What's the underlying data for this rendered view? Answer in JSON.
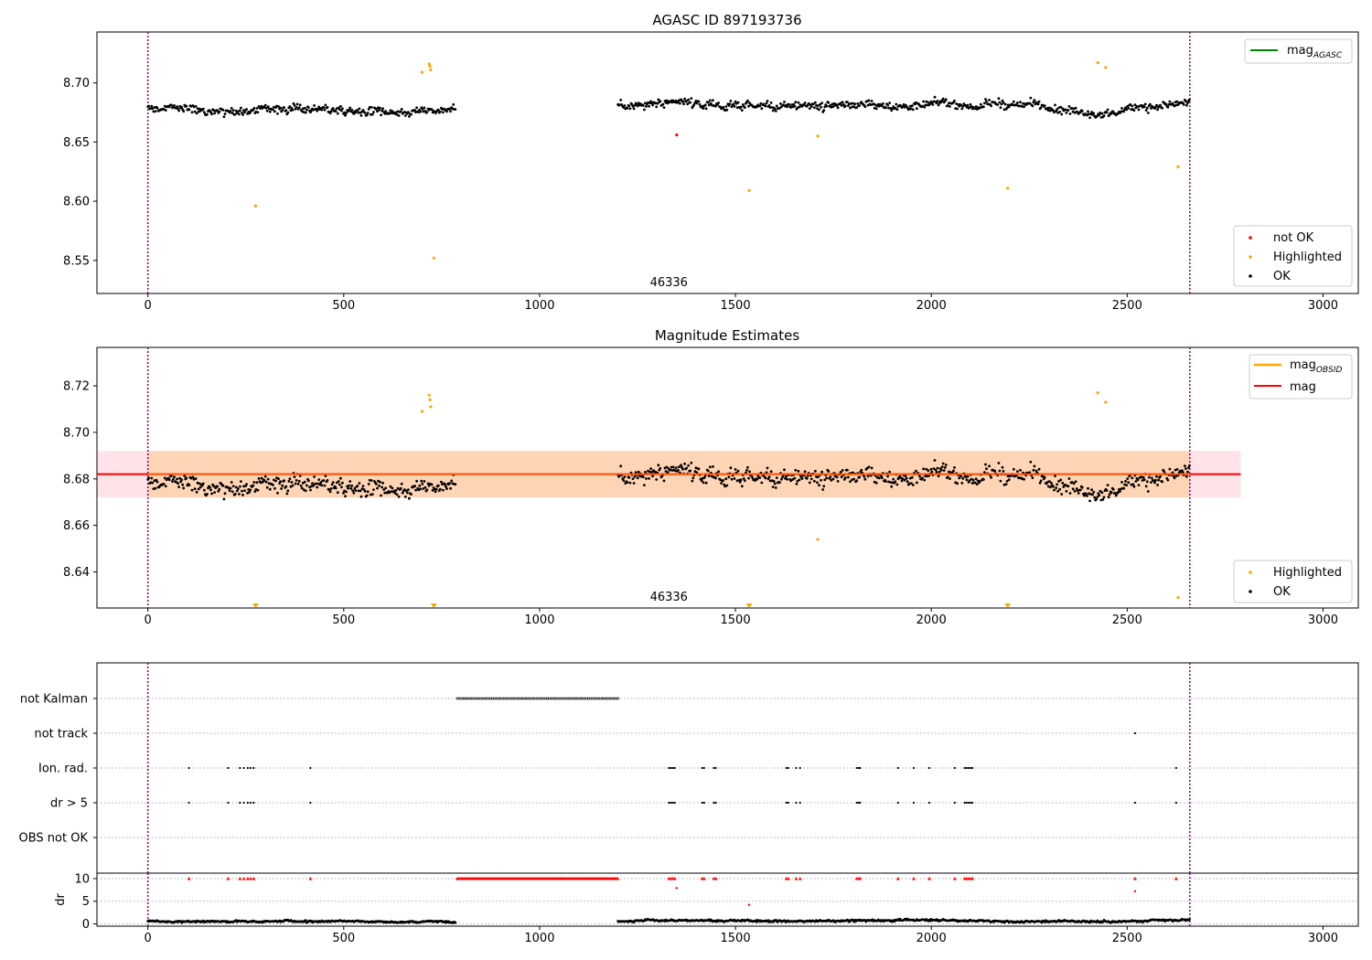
{
  "chart_data": [
    {
      "id": "agasc",
      "type": "scatter",
      "title": "AGASC ID 897193736",
      "xlim": [
        -130,
        3090
      ],
      "ylim": [
        8.522,
        8.743
      ],
      "xticks": [
        0,
        500,
        1000,
        1500,
        2000,
        2500,
        3000
      ],
      "yticks": [
        8.55,
        8.6,
        8.65,
        8.7
      ],
      "ytick_labels": [
        "8.55",
        "8.60",
        "8.65",
        "8.70"
      ],
      "obsid_boundaries": [
        0,
        2660
      ],
      "obsid_label": {
        "text": "46336",
        "x": 1330
      },
      "legend_lines": [
        {
          "label_main": "mag",
          "label_sub": "AGASC",
          "color": "#008000"
        }
      ],
      "legend_points": [
        {
          "label": "not OK",
          "color": "#ff0000"
        },
        {
          "label": "Highlighted",
          "color": "#ffa500"
        },
        {
          "label": "OK",
          "color": "#000000"
        }
      ],
      "ok_series": {
        "color": "#000000",
        "segments": [
          {
            "x_start": 0,
            "x_end": 785,
            "step": 2.4,
            "center": 8.679,
            "amplitude": 0.009
          },
          {
            "x_start": 1200,
            "x_end": 2660,
            "step": 2.4,
            "center": 8.681,
            "amplitude": 0.009
          }
        ]
      },
      "highlighted": [
        {
          "x": 275,
          "y": 8.596
        },
        {
          "x": 700,
          "y": 8.709
        },
        {
          "x": 718,
          "y": 8.716
        },
        {
          "x": 720,
          "y": 8.714
        },
        {
          "x": 722,
          "y": 8.711
        },
        {
          "x": 730,
          "y": 8.552
        },
        {
          "x": 1535,
          "y": 8.609
        },
        {
          "x": 1710,
          "y": 8.655
        },
        {
          "x": 2195,
          "y": 8.611
        },
        {
          "x": 2425,
          "y": 8.717
        },
        {
          "x": 2445,
          "y": 8.713
        },
        {
          "x": 2630,
          "y": 8.629
        }
      ],
      "not_ok": [
        {
          "x": 1350,
          "y": 8.656
        }
      ]
    },
    {
      "id": "estimates",
      "type": "scatter",
      "title": "Magnitude Estimates",
      "xlim": [
        -130,
        3090
      ],
      "ylim": [
        8.6245,
        8.7365
      ],
      "xticks": [
        0,
        500,
        1000,
        1500,
        2000,
        2500,
        3000
      ],
      "yticks": [
        8.64,
        8.66,
        8.68,
        8.7,
        8.72
      ],
      "ytick_labels": [
        "8.64",
        "8.66",
        "8.68",
        "8.70",
        "8.72"
      ],
      "obsid_boundaries": [
        0,
        2660
      ],
      "obsid_label": {
        "text": "46336",
        "x": 1330
      },
      "mag": 8.682,
      "mag_band": [
        8.672,
        8.692
      ],
      "mag_band_x": [
        -130,
        2790
      ],
      "obsid_mag": 8.682,
      "obsid_band": [
        8.672,
        8.692
      ],
      "obsid_band_x": [
        0,
        2660
      ],
      "legend_lines": [
        {
          "label_main": "mag",
          "label_sub": "OBSID",
          "color": "#ffa500"
        },
        {
          "label_main": "mag",
          "label_sub": "",
          "color": "#ff0000"
        }
      ],
      "legend_points": [
        {
          "label": "Highlighted",
          "color": "#ffa500"
        },
        {
          "label": "OK",
          "color": "#000000"
        }
      ],
      "ok_series": {
        "color": "#000000",
        "segments": [
          {
            "x_start": 0,
            "x_end": 785,
            "step": 2.4,
            "center": 8.679,
            "amplitude": 0.009
          },
          {
            "x_start": 1200,
            "x_end": 2660,
            "step": 2.4,
            "center": 8.681,
            "amplitude": 0.009
          }
        ]
      },
      "highlighted": [
        {
          "x": 700,
          "y": 8.709
        },
        {
          "x": 718,
          "y": 8.716
        },
        {
          "x": 720,
          "y": 8.714
        },
        {
          "x": 722,
          "y": 8.711
        },
        {
          "x": 1710,
          "y": 8.654
        },
        {
          "x": 2425,
          "y": 8.717
        },
        {
          "x": 2445,
          "y": 8.713
        },
        {
          "x": 2630,
          "y": 8.629
        }
      ],
      "below_range_markers": [
        275,
        730,
        1535,
        2195
      ]
    },
    {
      "id": "flags",
      "type": "scatter",
      "xlim": [
        -130,
        3090
      ],
      "categories": [
        "not Kalman",
        "not track",
        "Ion. rad.",
        "dr > 5",
        "OBS not OK"
      ],
      "flags": {
        "not Kalman": [
          {
            "from": 790,
            "to": 1200,
            "step": 5
          }
        ],
        "not track": [
          2520
        ],
        "Ion. rad.": [
          105,
          205,
          235,
          245,
          255,
          262,
          270,
          415,
          1330,
          1335,
          1340,
          1345,
          1415,
          1420,
          1445,
          1450,
          1630,
          1635,
          1655,
          1665,
          1810,
          1815,
          1818,
          1915,
          1955,
          1995,
          2060,
          2085,
          2090,
          2095,
          2100,
          2105,
          2625
        ],
        "dr > 5": [
          105,
          205,
          235,
          245,
          255,
          262,
          270,
          415,
          1330,
          1335,
          1340,
          1345,
          1415,
          1420,
          1445,
          1450,
          1630,
          1635,
          1655,
          1665,
          1810,
          1815,
          1818,
          1915,
          1955,
          1995,
          2060,
          2085,
          2090,
          2095,
          2100,
          2105,
          2520,
          2625
        ],
        "OBS not OK": []
      },
      "obsid_boundaries": [
        0,
        2660
      ]
    },
    {
      "id": "dr",
      "type": "scatter",
      "ylabel": "dr",
      "xlim": [
        -130,
        3090
      ],
      "ylim": [
        -0.5,
        11.2
      ],
      "xticks": [
        0,
        500,
        1000,
        1500,
        2000,
        2500,
        3000
      ],
      "yticks": [
        0,
        5,
        10
      ],
      "obsid_boundaries": [
        0,
        2660
      ],
      "dr_series": {
        "color": "#000000",
        "segments": [
          {
            "x_start": 0,
            "x_end": 785,
            "step": 2.4,
            "center": 0.55,
            "amplitude": 0.5
          },
          {
            "x_start": 1200,
            "x_end": 2660,
            "step": 2.4,
            "center": 0.6,
            "amplitude": 0.55
          }
        ]
      },
      "clipped_dr": {
        "color": "#ff0000",
        "y": 10,
        "x": [
          105,
          205,
          235,
          245,
          255,
          262,
          270,
          415,
          1330,
          1335,
          1340,
          1345,
          1415,
          1420,
          1445,
          1450,
          1630,
          1635,
          1655,
          1665,
          1810,
          1815,
          1818,
          1915,
          1955,
          1995,
          2060,
          2085,
          2090,
          2095,
          2100,
          2105,
          2520,
          2625
        ],
        "band": {
          "from": 790,
          "to": 1200,
          "step": 3.5
        }
      },
      "large_dr": [
        {
          "x": 1350,
          "y": 7.9
        },
        {
          "x": 1535,
          "y": 4.2
        },
        {
          "x": 2520,
          "y": 7.2
        }
      ]
    }
  ]
}
